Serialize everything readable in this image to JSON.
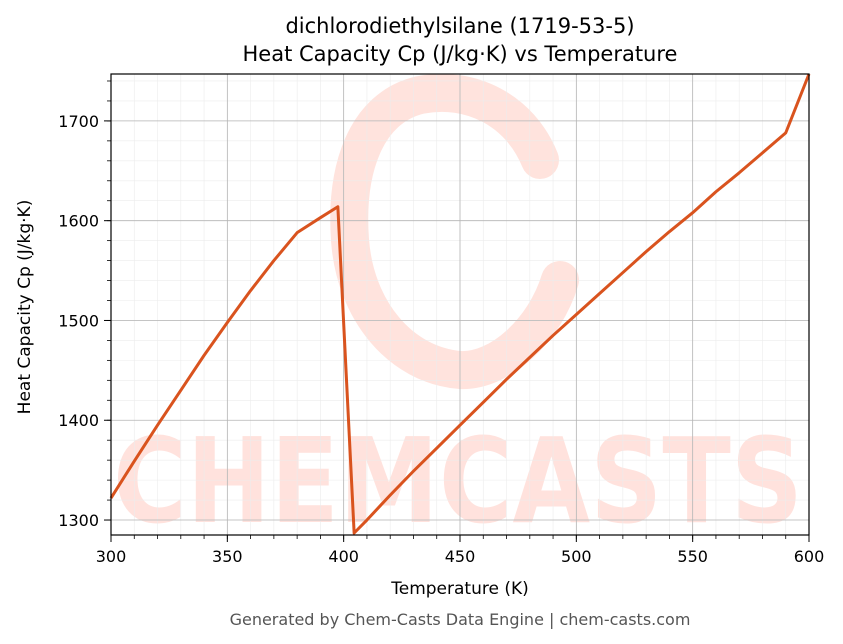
{
  "chart_data": {
    "type": "line",
    "title": "dichlorodiethylsilane (1719-53-5)",
    "subtitle": "Heat Capacity Cp (J/kg·K) vs Temperature",
    "xlabel": "Temperature (K)",
    "ylabel": "Heat Capacity Cp (J/kg·K)",
    "xlim": [
      300,
      600
    ],
    "ylim": [
      1285,
      1747
    ],
    "xticks": [
      300,
      350,
      400,
      450,
      500,
      550,
      600
    ],
    "yticks": [
      1300,
      1400,
      1500,
      1600,
      1700
    ],
    "grid": true,
    "line_color": "#d9531e",
    "series": [
      {
        "x": [
          300,
          310,
          320,
          330,
          340,
          350,
          360,
          370,
          380,
          390,
          397.5,
          404.5,
          410,
          420,
          430,
          440,
          450,
          460,
          470,
          480,
          490,
          500,
          510,
          520,
          530,
          540,
          550,
          560,
          570,
          580,
          590,
          600
        ],
        "y": [
          1322,
          1359,
          1395,
          1430,
          1465,
          1498,
          1530,
          1560,
          1588,
          1603,
          1614,
          1287,
          1300,
          1325,
          1349,
          1372,
          1395,
          1418,
          1441,
          1463,
          1485,
          1506,
          1527,
          1548,
          1569,
          1589,
          1608,
          1629,
          1648,
          1668,
          1688,
          1747
        ]
      }
    ]
  },
  "watermark": {
    "text": "CHEMCASTS",
    "color": "#ffd9d2"
  },
  "footer": "Generated by Chem-Casts Data Engine | chem-casts.com"
}
